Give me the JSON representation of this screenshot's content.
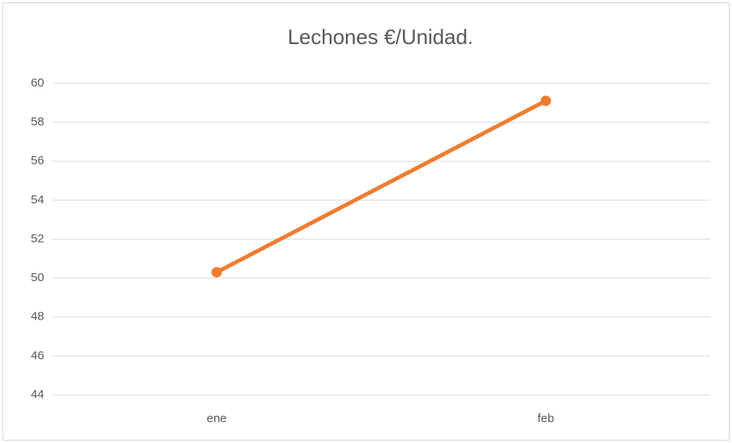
{
  "chart_data": {
    "type": "line",
    "title": "Lechones €/Unidad.",
    "categories": [
      "ene",
      "feb"
    ],
    "series": [
      {
        "name": "Lechones €/Unidad.",
        "color": "#ed7d31",
        "values": [
          50.3,
          59.1
        ]
      }
    ],
    "ylim": [
      44,
      60
    ],
    "yticks": [
      44,
      46,
      48,
      50,
      52,
      54,
      56,
      58,
      60
    ],
    "grid": true
  }
}
